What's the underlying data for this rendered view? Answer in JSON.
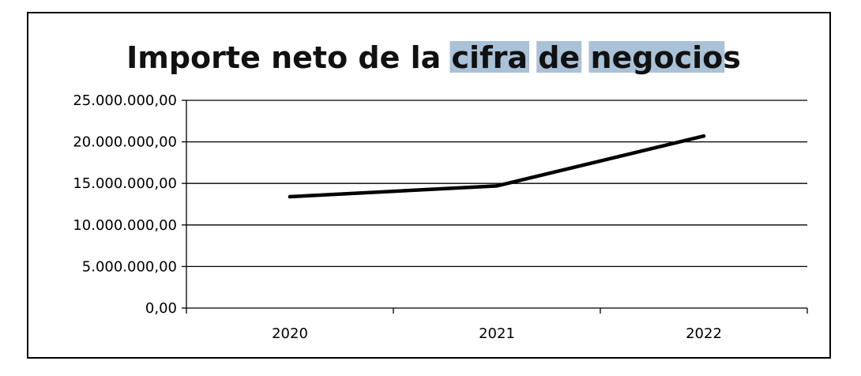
{
  "chart_data": {
    "type": "line",
    "title": "Importe neto de la cifra de negocios",
    "title_highlight": {
      "segments": [
        "cifra",
        "de",
        "negocio"
      ],
      "color": "#a9c2d8"
    },
    "xlabel": "",
    "ylabel": "",
    "categories": [
      "2020",
      "2021",
      "2022"
    ],
    "series": [
      {
        "values": [
          13400000,
          14700000,
          20700000
        ],
        "color": "#000000"
      }
    ],
    "ylim": [
      0,
      25000000
    ],
    "y_ticks": [
      0,
      5000000,
      10000000,
      15000000,
      20000000,
      25000000
    ],
    "y_tick_labels": [
      "0,00",
      "5.000.000,00",
      "10.000.000,00",
      "15.000.000,00",
      "20.000.000,00",
      "25.000.000,00"
    ],
    "grid": "horizontal",
    "legend": "none"
  }
}
